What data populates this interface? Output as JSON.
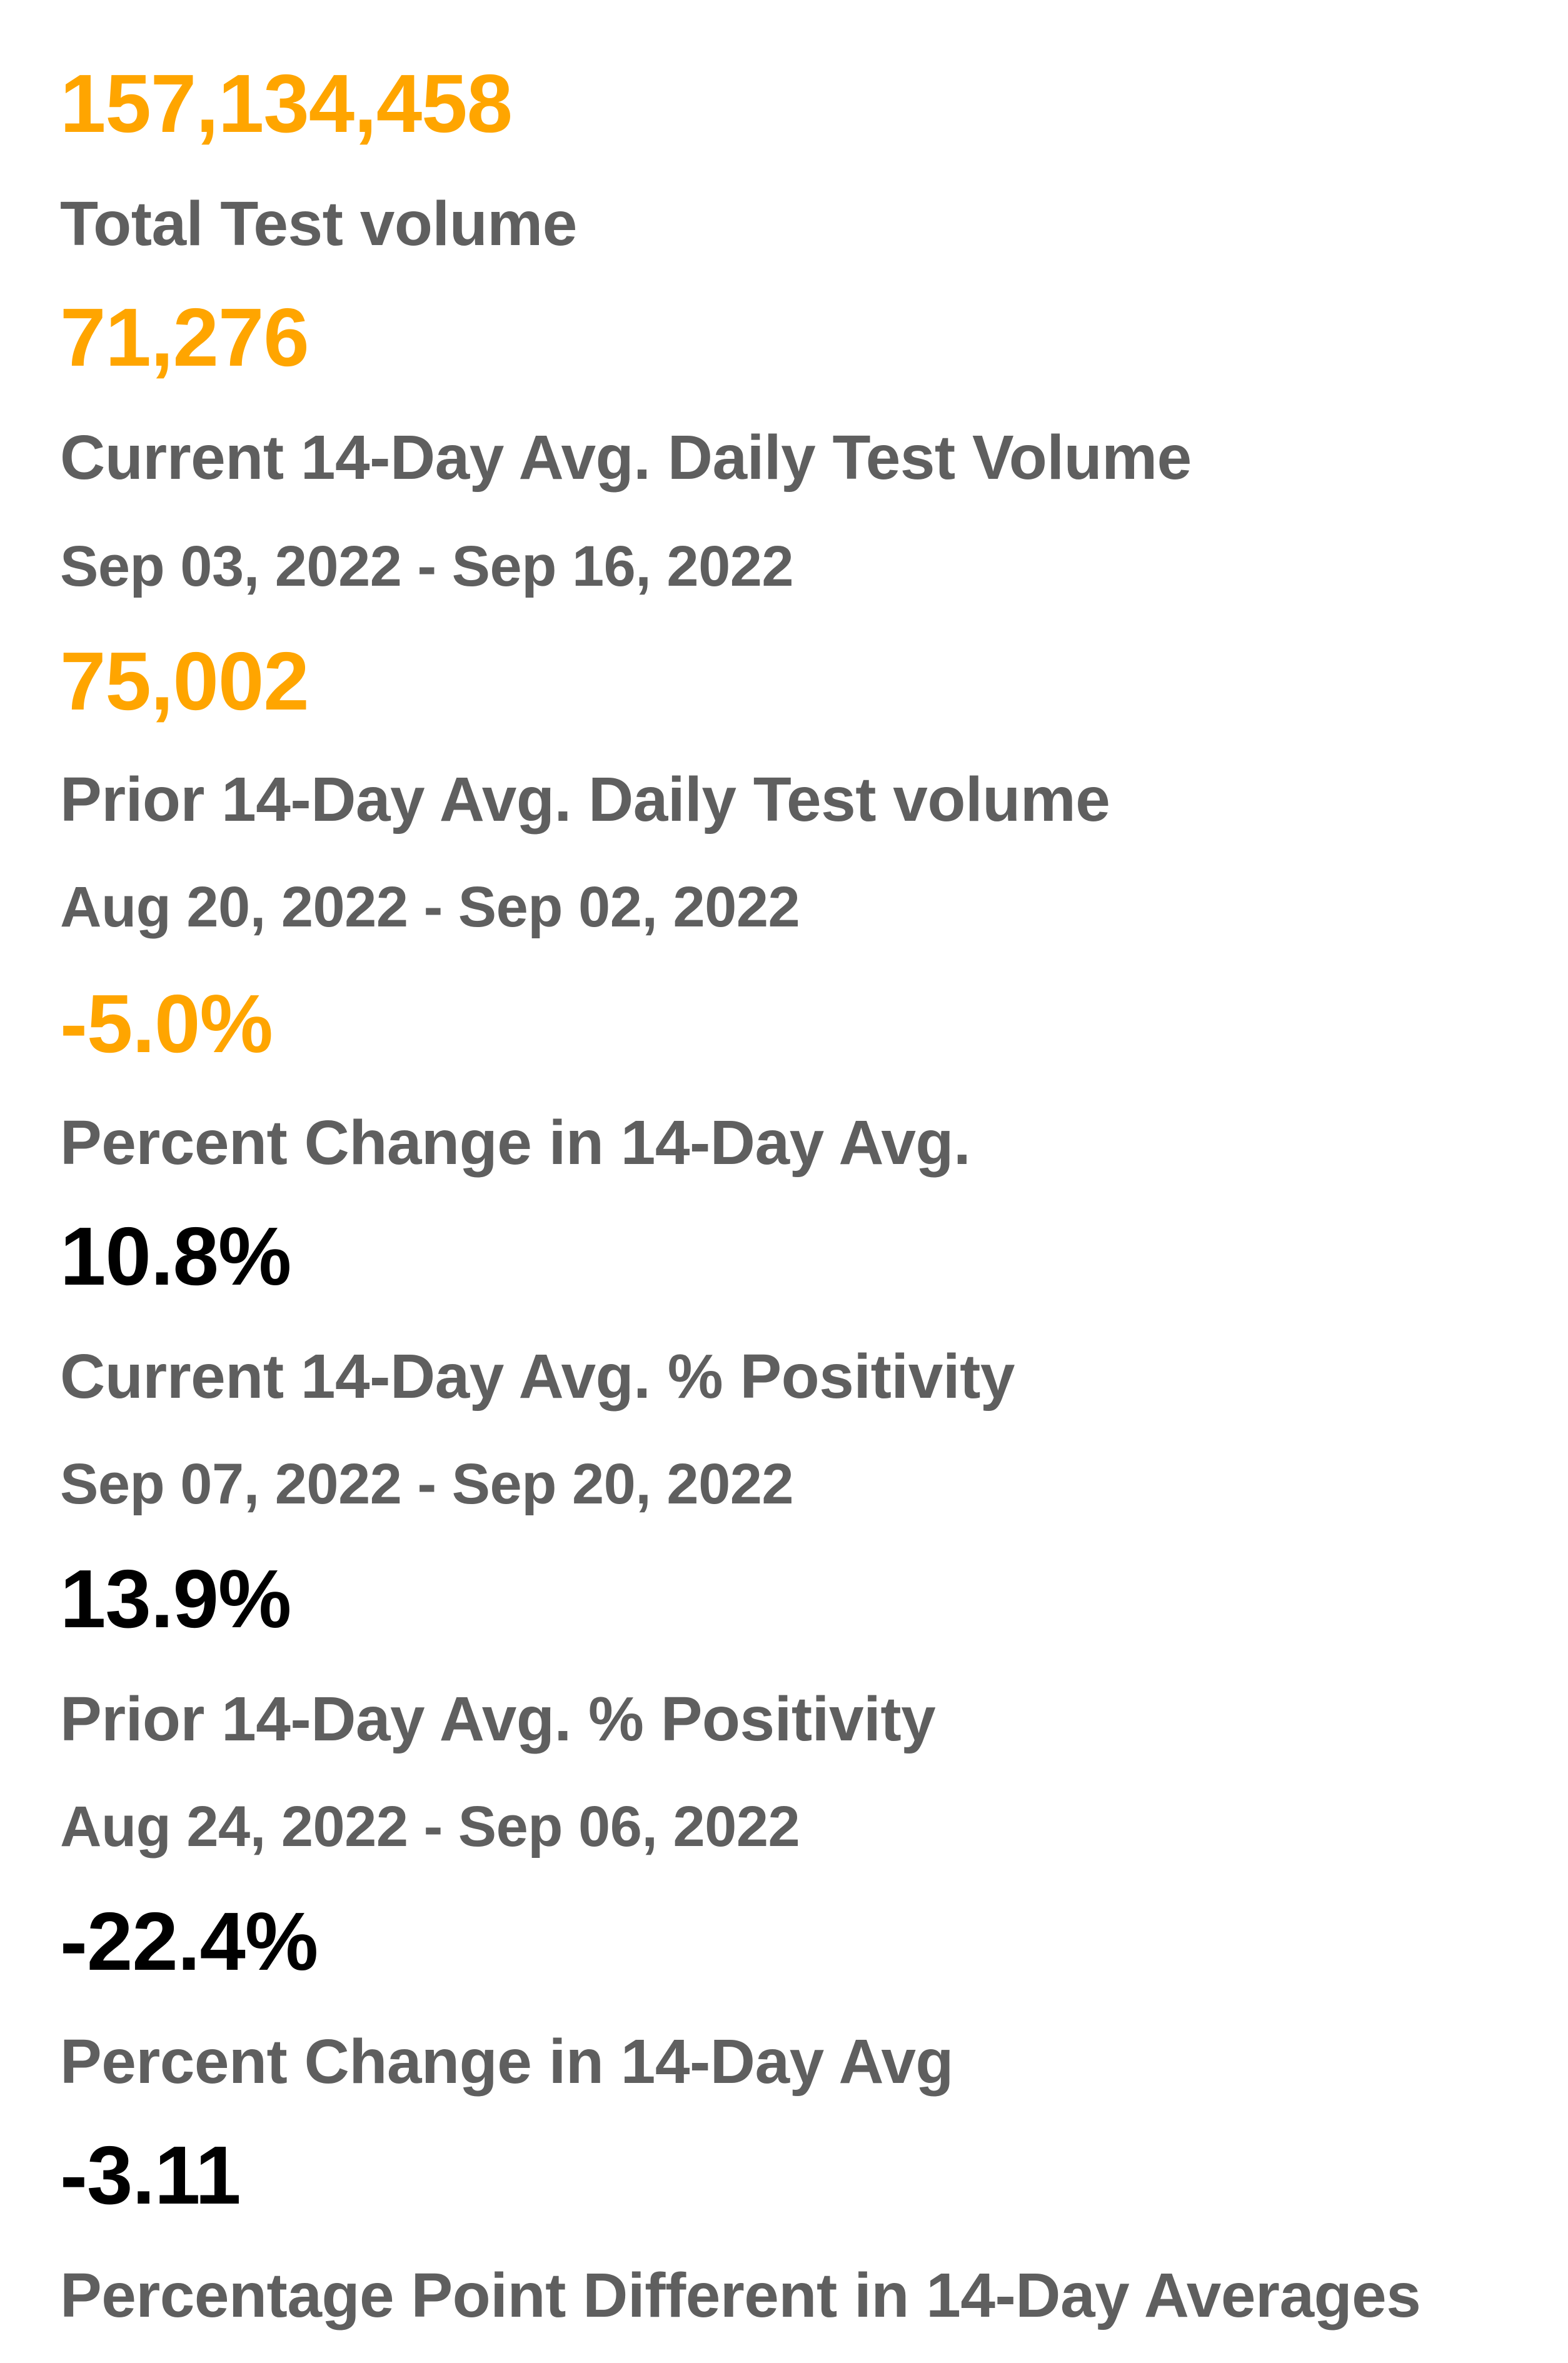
{
  "colors": {
    "accent": "#FFA500",
    "label": "#5F5F5F",
    "value_dark": "#000000",
    "background": "#FFFFFF"
  },
  "metrics": {
    "total_volume": {
      "value": "157,134,458",
      "label": "Total Test volume"
    },
    "current_avg_volume": {
      "value": "71,276",
      "label": "Current 14-Day Avg. Daily Test Volume",
      "date_range": "Sep 03, 2022 - Sep 16, 2022"
    },
    "prior_avg_volume": {
      "value": "75,002",
      "label": "Prior 14-Day Avg. Daily Test volume",
      "date_range": "Aug 20, 2022 - Sep 02, 2022"
    },
    "volume_pct_change": {
      "value": "-5.0%",
      "label": "Percent Change in 14-Day Avg."
    },
    "current_positivity": {
      "value": "10.8%",
      "label": "Current 14-Day Avg. % Positivity",
      "date_range": "Sep 07, 2022 - Sep 20, 2022"
    },
    "prior_positivity": {
      "value": "13.9%",
      "label": "Prior 14-Day Avg. % Positivity",
      "date_range": "Aug 24, 2022 - Sep 06, 2022"
    },
    "positivity_pct_change": {
      "value": "-22.4%",
      "label": "Percent Change in 14-Day Avg"
    },
    "positivity_point_diff": {
      "value": "-3.11",
      "label": "Percentage Point Different in 14-Day Averages"
    }
  }
}
